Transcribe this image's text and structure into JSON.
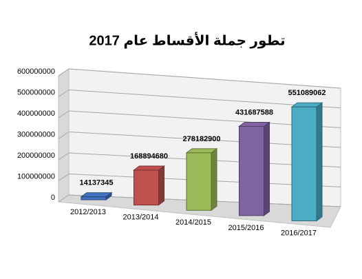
{
  "chart_data": {
    "type": "bar3d",
    "title": "تطور جملة الأقساط عام 2017",
    "categories": [
      "2012/2013",
      "2013/2014",
      "2014/2015",
      "2015/2016",
      "2016/2017"
    ],
    "values": [
      14137345,
      168894680,
      278182900,
      431687588,
      551089062
    ],
    "colors": [
      "#4472c4",
      "#c0504d",
      "#9bbb59",
      "#8064a2",
      "#4bacc6"
    ],
    "ylim": [
      0,
      600000000
    ],
    "yticks": [
      0,
      100000000,
      200000000,
      300000000,
      400000000,
      500000000,
      600000000
    ],
    "grid": true
  }
}
